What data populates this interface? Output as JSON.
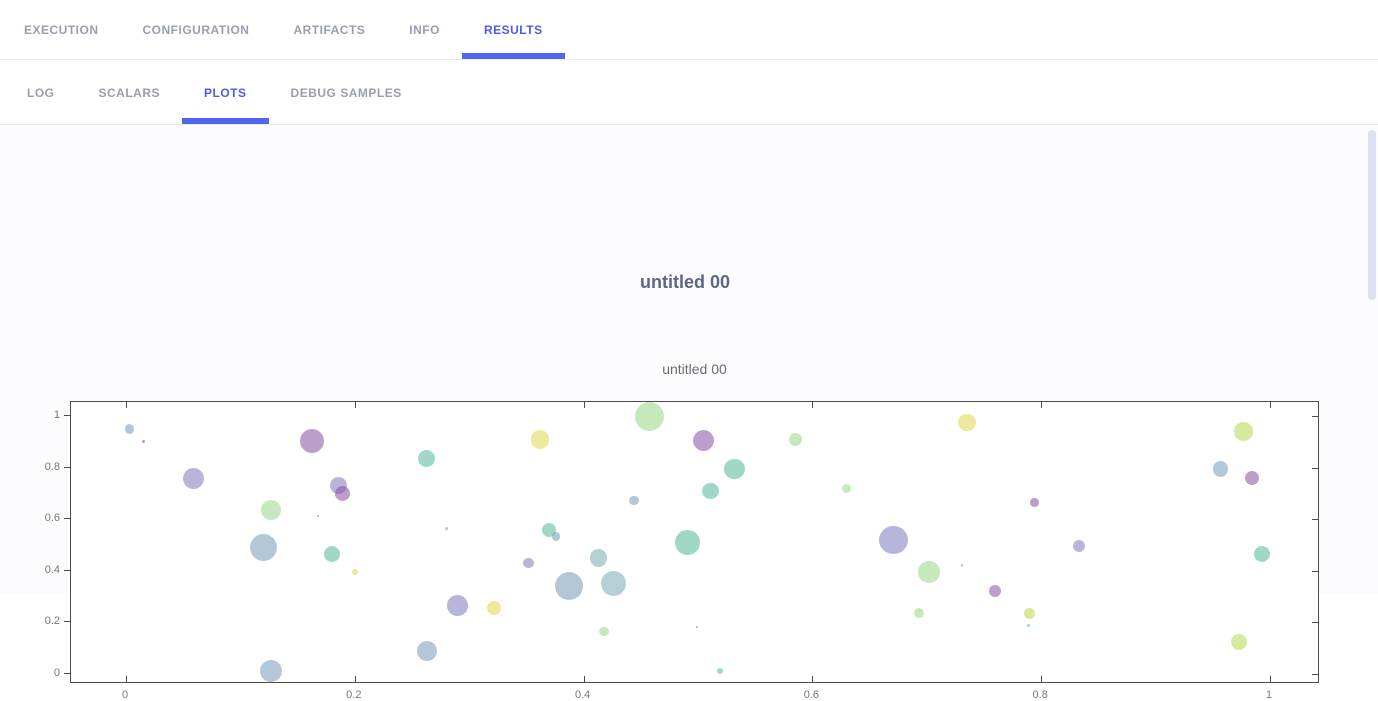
{
  "top_tabs": {
    "items": [
      {
        "label": "EXECUTION",
        "active": false
      },
      {
        "label": "CONFIGURATION",
        "active": false
      },
      {
        "label": "ARTIFACTS",
        "active": false
      },
      {
        "label": "INFO",
        "active": false
      },
      {
        "label": "RESULTS",
        "active": true
      }
    ]
  },
  "sub_tabs": {
    "items": [
      {
        "label": "LOG",
        "active": false
      },
      {
        "label": "SCALARS",
        "active": false
      },
      {
        "label": "PLOTS",
        "active": true
      },
      {
        "label": "DEBUG SAMPLES",
        "active": false
      }
    ]
  },
  "section_title": "untitled 00",
  "chart_data": {
    "type": "scatter",
    "title": "untitled 00",
    "xlabel": "",
    "ylabel": "",
    "xlim": [
      -0.048,
      1.044
    ],
    "ylim": [
      -0.039,
      1.054
    ],
    "x_ticks": [
      0,
      0.2,
      0.4,
      0.6,
      0.8,
      1
    ],
    "y_ticks": [
      0,
      0.2,
      0.4,
      0.6,
      0.8,
      1
    ],
    "x_tick_labels": [
      "0",
      "0.2",
      "0.4",
      "0.6",
      "0.8",
      "1"
    ],
    "y_tick_labels": [
      "0",
      "0.2",
      "0.4",
      "0.6",
      "0.8",
      "1"
    ],
    "grid": false,
    "legend_position": "none",
    "marker_style": "bubble, semi-transparent, sized randomly",
    "palette": {
      "steel": "rgba(104,143,180,0.50)",
      "lavender": "rgba(98,92,176,0.45)",
      "purple": "rgba(134,78,160,0.55)",
      "green": "rgba(118,203,96,0.42)",
      "teal": "rgba(44,168,132,0.45)",
      "grayteal": "rgba(88,150,162,0.45)",
      "yellow": "rgba(216,206,36,0.45)",
      "lime": "rgba(174,212,57,0.50)"
    },
    "points": [
      {
        "x": 0.003,
        "y": 0.95,
        "r": 4.7,
        "color": "steel"
      },
      {
        "x": 0.015,
        "y": 0.9,
        "r": 1.5,
        "color": "purple"
      },
      {
        "x": 0.059,
        "y": 0.756,
        "r": 10.5,
        "color": "lavender"
      },
      {
        "x": 0.163,
        "y": 0.905,
        "r": 12.0,
        "color": "purple"
      },
      {
        "x": 0.127,
        "y": 0.635,
        "r": 10.0,
        "color": "green"
      },
      {
        "x": 0.12,
        "y": 0.49,
        "r": 13.5,
        "color": "steel"
      },
      {
        "x": 0.186,
        "y": 0.73,
        "r": 8.5,
        "color": "lavender"
      },
      {
        "x": 0.189,
        "y": 0.7,
        "r": 7.5,
        "color": "purple"
      },
      {
        "x": 0.168,
        "y": 0.612,
        "r": 1.0,
        "color": "purple"
      },
      {
        "x": 0.18,
        "y": 0.465,
        "r": 8.0,
        "color": "teal"
      },
      {
        "x": 0.2,
        "y": 0.395,
        "r": 3.0,
        "color": "yellow"
      },
      {
        "x": 0.127,
        "y": 0.012,
        "r": 11.0,
        "color": "steel"
      },
      {
        "x": 0.263,
        "y": 0.835,
        "r": 8.5,
        "color": "teal"
      },
      {
        "x": 0.263,
        "y": 0.09,
        "r": 10.0,
        "color": "steel"
      },
      {
        "x": 0.28,
        "y": 0.563,
        "r": 1.3,
        "color": "steel"
      },
      {
        "x": 0.29,
        "y": 0.265,
        "r": 10.3,
        "color": "lavender"
      },
      {
        "x": 0.322,
        "y": 0.255,
        "r": 7.0,
        "color": "yellow"
      },
      {
        "x": 0.352,
        "y": 0.43,
        "r": 5.3,
        "color": "lavender"
      },
      {
        "x": 0.362,
        "y": 0.91,
        "r": 9.3,
        "color": "yellow"
      },
      {
        "x": 0.37,
        "y": 0.56,
        "r": 7.0,
        "color": "teal"
      },
      {
        "x": 0.376,
        "y": 0.532,
        "r": 4.3,
        "color": "steel"
      },
      {
        "x": 0.387,
        "y": 0.34,
        "r": 14.0,
        "color": "steel"
      },
      {
        "x": 0.413,
        "y": 0.45,
        "r": 8.7,
        "color": "grayteal"
      },
      {
        "x": 0.426,
        "y": 0.35,
        "r": 12.5,
        "color": "grayteal"
      },
      {
        "x": 0.418,
        "y": 0.165,
        "r": 4.7,
        "color": "green"
      },
      {
        "x": 0.444,
        "y": 0.672,
        "r": 4.7,
        "color": "steel"
      },
      {
        "x": 0.458,
        "y": 1.0,
        "r": 14.5,
        "color": "green"
      },
      {
        "x": 0.491,
        "y": 0.51,
        "r": 12.3,
        "color": "teal"
      },
      {
        "x": 0.499,
        "y": 0.182,
        "r": 1.0,
        "color": "purple"
      },
      {
        "x": 0.505,
        "y": 0.905,
        "r": 10.5,
        "color": "purple"
      },
      {
        "x": 0.511,
        "y": 0.71,
        "r": 8.3,
        "color": "teal"
      },
      {
        "x": 0.519,
        "y": 0.013,
        "r": 3.0,
        "color": "teal"
      },
      {
        "x": 0.532,
        "y": 0.795,
        "r": 10.3,
        "color": "teal"
      },
      {
        "x": 0.585,
        "y": 0.91,
        "r": 6.7,
        "color": "green"
      },
      {
        "x": 0.63,
        "y": 0.72,
        "r": 4.5,
        "color": "green"
      },
      {
        "x": 0.671,
        "y": 0.52,
        "r": 14.3,
        "color": "lavender"
      },
      {
        "x": 0.702,
        "y": 0.395,
        "r": 10.7,
        "color": "green"
      },
      {
        "x": 0.731,
        "y": 0.42,
        "r": 1.2,
        "color": "teal"
      },
      {
        "x": 0.735,
        "y": 0.975,
        "r": 8.7,
        "color": "yellow"
      },
      {
        "x": 0.76,
        "y": 0.323,
        "r": 6.0,
        "color": "purple"
      },
      {
        "x": 0.693,
        "y": 0.235,
        "r": 5.0,
        "color": "green"
      },
      {
        "x": 0.79,
        "y": 0.235,
        "r": 5.3,
        "color": "lime"
      },
      {
        "x": 0.789,
        "y": 0.188,
        "r": 1.5,
        "color": "teal"
      },
      {
        "x": 0.794,
        "y": 0.665,
        "r": 4.2,
        "color": "purple"
      },
      {
        "x": 0.833,
        "y": 0.495,
        "r": 6.0,
        "color": "lavender"
      },
      {
        "x": 0.957,
        "y": 0.795,
        "r": 7.7,
        "color": "steel"
      },
      {
        "x": 0.977,
        "y": 0.94,
        "r": 9.3,
        "color": "lime"
      },
      {
        "x": 0.984,
        "y": 0.76,
        "r": 7.0,
        "color": "purple"
      },
      {
        "x": 0.993,
        "y": 0.465,
        "r": 8.0,
        "color": "teal"
      },
      {
        "x": 0.973,
        "y": 0.125,
        "r": 8.0,
        "color": "lime"
      }
    ]
  },
  "colors": {
    "accent_text": "#4a5ce8",
    "accent_bar": "#5066f0",
    "tab_inactive": "#999db0",
    "section_title": "#5b6687",
    "chart_title": "#6a6a72",
    "axis_line": "#4c4c4c",
    "tick_label": "#767676",
    "scrollbar_thumb": "#dce0f1"
  }
}
